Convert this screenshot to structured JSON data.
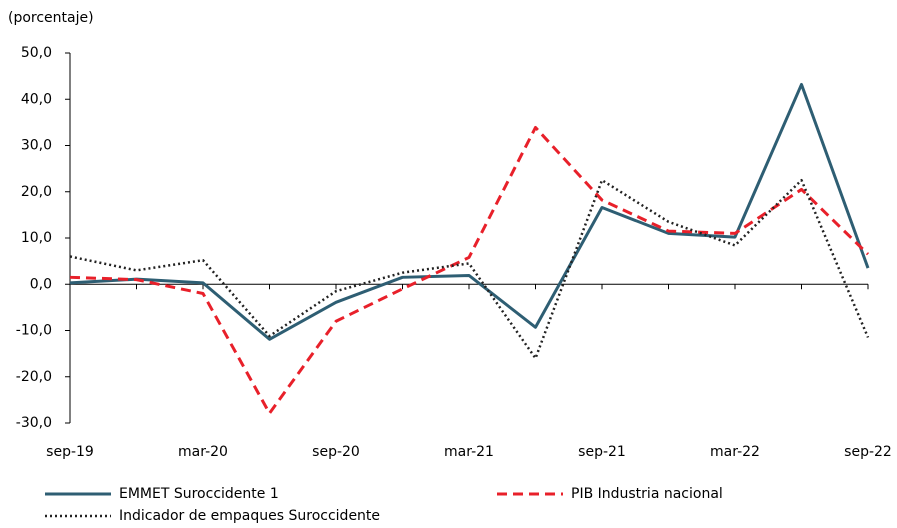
{
  "chart_data": {
    "type": "line",
    "y_label": "(porcentaje)",
    "categories": [
      "sep-19",
      null,
      "mar-20",
      null,
      "sep-20",
      null,
      "mar-21",
      null,
      "sep-21",
      null,
      "mar-22",
      null,
      "sep-22"
    ],
    "series": [
      {
        "name": "EMMET Suroccidente 1",
        "color": "#2e5e73",
        "dash": "solid",
        "values": [
          0.3,
          1.1,
          0.3,
          -11.9,
          -3.9,
          1.5,
          1.9,
          -9.3,
          16.6,
          11,
          10.2,
          43.2,
          3.5
        ]
      },
      {
        "name": "PIB Industria nacional",
        "color": "#e8202a",
        "dash": "dashed",
        "values": [
          1.5,
          1,
          -2,
          -27.9,
          -8,
          -1,
          5.8,
          33.9,
          18.2,
          11.5,
          11,
          20.5,
          6.5
        ]
      },
      {
        "name": "Indicador de empaques Suroccidente",
        "color": "#222222",
        "dash": "dotted",
        "values": [
          6,
          3,
          5.2,
          -11.2,
          -1.5,
          2.5,
          4.5,
          -16,
          22.5,
          13.5,
          8.4,
          22.5,
          -11.5
        ]
      }
    ],
    "ylim": [
      -30,
      50
    ],
    "yticks": [
      {
        "value": -30,
        "label": "-30,0"
      },
      {
        "value": -20,
        "label": "-20,0"
      },
      {
        "value": -10,
        "label": "-10,0"
      },
      {
        "value": 0,
        "label": "0,0"
      },
      {
        "value": 10,
        "label": "10,0"
      },
      {
        "value": 20,
        "label": "20,0"
      },
      {
        "value": 30,
        "label": "30,0"
      },
      {
        "value": 40,
        "label": "40,0"
      },
      {
        "value": 50,
        "label": "50,0"
      }
    ]
  }
}
